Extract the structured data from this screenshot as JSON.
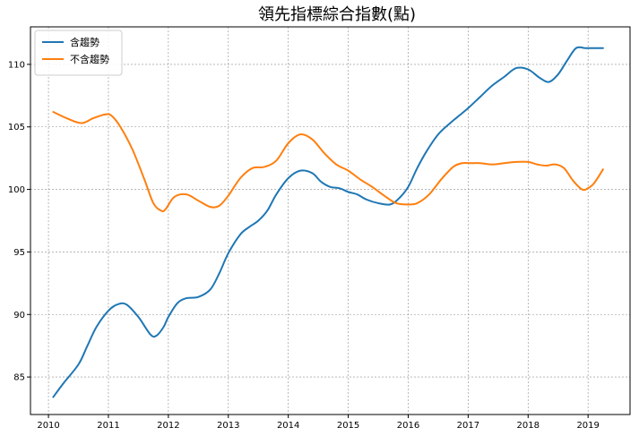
{
  "chart_data": {
    "type": "line",
    "title": "領先指標綜合指數(點)",
    "xlabel": "",
    "ylabel": "",
    "xlim": [
      2009.7,
      2019.7
    ],
    "ylim": [
      82.0,
      113.0
    ],
    "xticks": [
      2010,
      2011,
      2012,
      2013,
      2014,
      2015,
      2016,
      2017,
      2018,
      2019
    ],
    "xtick_labels": [
      "2010",
      "2011",
      "2012",
      "2013",
      "2014",
      "2015",
      "2016",
      "2017",
      "2018",
      "2019"
    ],
    "yticks": [
      85,
      90,
      95,
      100,
      105,
      110
    ],
    "ytick_labels": [
      "85",
      "90",
      "95",
      "100",
      "105",
      "110"
    ],
    "grid": true,
    "legend_position": "top-left",
    "series": [
      {
        "name": "含趨勢",
        "color": "#1f77b4",
        "x": [
          2010.08,
          2010.25,
          2010.5,
          2010.65,
          2010.8,
          2011.0,
          2011.15,
          2011.3,
          2011.5,
          2011.7,
          2011.8,
          2011.92,
          2012.0,
          2012.15,
          2012.3,
          2012.5,
          2012.7,
          2012.85,
          2013.0,
          2013.2,
          2013.35,
          2013.5,
          2013.65,
          2013.8,
          2014.0,
          2014.2,
          2014.4,
          2014.55,
          2014.7,
          2014.85,
          2015.0,
          2015.15,
          2015.3,
          2015.5,
          2015.7,
          2015.85,
          2016.0,
          2016.15,
          2016.3,
          2016.5,
          2016.7,
          2016.85,
          2017.0,
          2017.2,
          2017.4,
          2017.6,
          2017.8,
          2018.0,
          2018.2,
          2018.35,
          2018.5,
          2018.65,
          2018.8,
          2018.95,
          2019.05,
          2019.15,
          2019.25
        ],
        "values": [
          83.4,
          84.5,
          86.0,
          87.5,
          89.0,
          90.3,
          90.8,
          90.8,
          89.8,
          88.4,
          88.3,
          89.0,
          89.8,
          90.9,
          91.3,
          91.4,
          92.0,
          93.3,
          94.9,
          96.4,
          97.0,
          97.5,
          98.3,
          99.6,
          100.9,
          101.5,
          101.3,
          100.6,
          100.2,
          100.1,
          99.8,
          99.6,
          99.2,
          98.9,
          98.8,
          99.3,
          100.2,
          101.7,
          103.0,
          104.4,
          105.3,
          105.9,
          106.5,
          107.4,
          108.3,
          109.0,
          109.7,
          109.6,
          108.9,
          108.6,
          109.2,
          110.3,
          111.3,
          111.3,
          111.3,
          111.3,
          111.3
        ]
      },
      {
        "name": "不含趨勢",
        "color": "#ff7f0e",
        "x": [
          2010.08,
          2010.3,
          2010.55,
          2010.75,
          2010.95,
          2011.05,
          2011.2,
          2011.4,
          2011.6,
          2011.75,
          2011.88,
          2011.95,
          2012.1,
          2012.3,
          2012.5,
          2012.7,
          2012.85,
          2013.0,
          2013.2,
          2013.4,
          2013.6,
          2013.8,
          2014.0,
          2014.2,
          2014.4,
          2014.6,
          2014.8,
          2015.0,
          2015.2,
          2015.4,
          2015.6,
          2015.8,
          2016.0,
          2016.15,
          2016.35,
          2016.55,
          2016.75,
          2016.9,
          2017.05,
          2017.2,
          2017.4,
          2017.6,
          2017.8,
          2018.0,
          2018.15,
          2018.3,
          2018.45,
          2018.6,
          2018.75,
          2018.9,
          2019.0,
          2019.1,
          2019.25
        ],
        "values": [
          106.2,
          105.7,
          105.3,
          105.7,
          106.0,
          105.9,
          105.0,
          103.2,
          100.8,
          98.9,
          98.3,
          98.4,
          99.4,
          99.6,
          99.1,
          98.6,
          98.7,
          99.5,
          100.9,
          101.7,
          101.8,
          102.3,
          103.7,
          104.4,
          104.0,
          102.9,
          102.0,
          101.5,
          100.8,
          100.2,
          99.5,
          98.9,
          98.8,
          98.9,
          99.6,
          100.8,
          101.8,
          102.1,
          102.1,
          102.1,
          102.0,
          102.1,
          102.2,
          102.2,
          102.0,
          101.9,
          102.0,
          101.7,
          100.7,
          100.0,
          100.1,
          100.5,
          101.6
        ]
      }
    ]
  }
}
